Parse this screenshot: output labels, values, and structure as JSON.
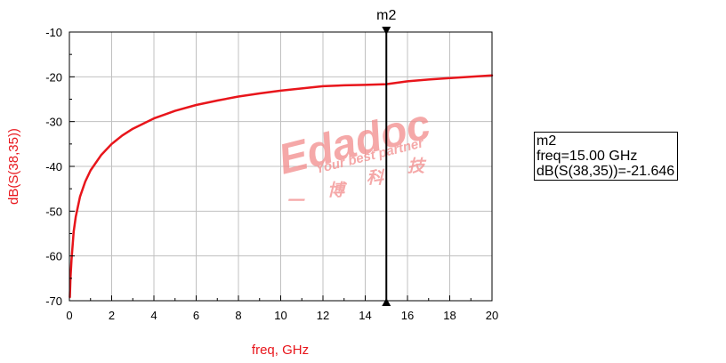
{
  "chart_data": {
    "type": "line",
    "title": "",
    "xlabel": "freq, GHz",
    "ylabel": "dB(S(38,35))",
    "xlim": [
      0,
      20
    ],
    "ylim": [
      -70,
      -10
    ],
    "x_ticks": [
      "0",
      "2",
      "4",
      "6",
      "8",
      "10",
      "12",
      "14",
      "16",
      "18",
      "20"
    ],
    "y_ticks": [
      "-10",
      "-20",
      "-30",
      "-40",
      "-50",
      "-60",
      "-70"
    ],
    "grid": true,
    "series": [
      {
        "color": "#e8151b",
        "x": [
          0.02,
          0.05,
          0.1,
          0.2,
          0.3,
          0.5,
          0.75,
          1.0,
          1.5,
          2,
          2.5,
          3,
          4,
          5,
          6,
          7,
          8,
          9,
          10,
          11,
          12,
          13,
          14,
          15,
          16,
          17,
          18,
          19,
          20
        ],
        "y": [
          -69.2,
          -65.0,
          -60.8,
          -54.6,
          -51.3,
          -46.8,
          -43.4,
          -40.9,
          -37.5,
          -35.0,
          -33.1,
          -31.6,
          -29.3,
          -27.6,
          -26.3,
          -25.3,
          -24.4,
          -23.7,
          -23.1,
          -22.6,
          -22.1,
          -21.9,
          -21.8,
          -21.646,
          -21.0,
          -20.6,
          -20.3,
          -20.0,
          -19.7
        ]
      }
    ],
    "marker": {
      "name": "m2",
      "freq": 15.0,
      "value": -21.646,
      "readout": [
        "m2",
        "freq=15.00 GHz",
        "dB(S(38,35))=-21.646"
      ]
    },
    "watermark": {
      "brand": "Edadoc",
      "tagline": "Your best partner",
      "chars": [
        "一",
        "博",
        "科",
        "技"
      ]
    }
  },
  "colors": {
    "curve": "#e8151b",
    "axis_title": "#e8151b",
    "grid": "#c0c0c0",
    "watermark": "#f28c8c"
  }
}
